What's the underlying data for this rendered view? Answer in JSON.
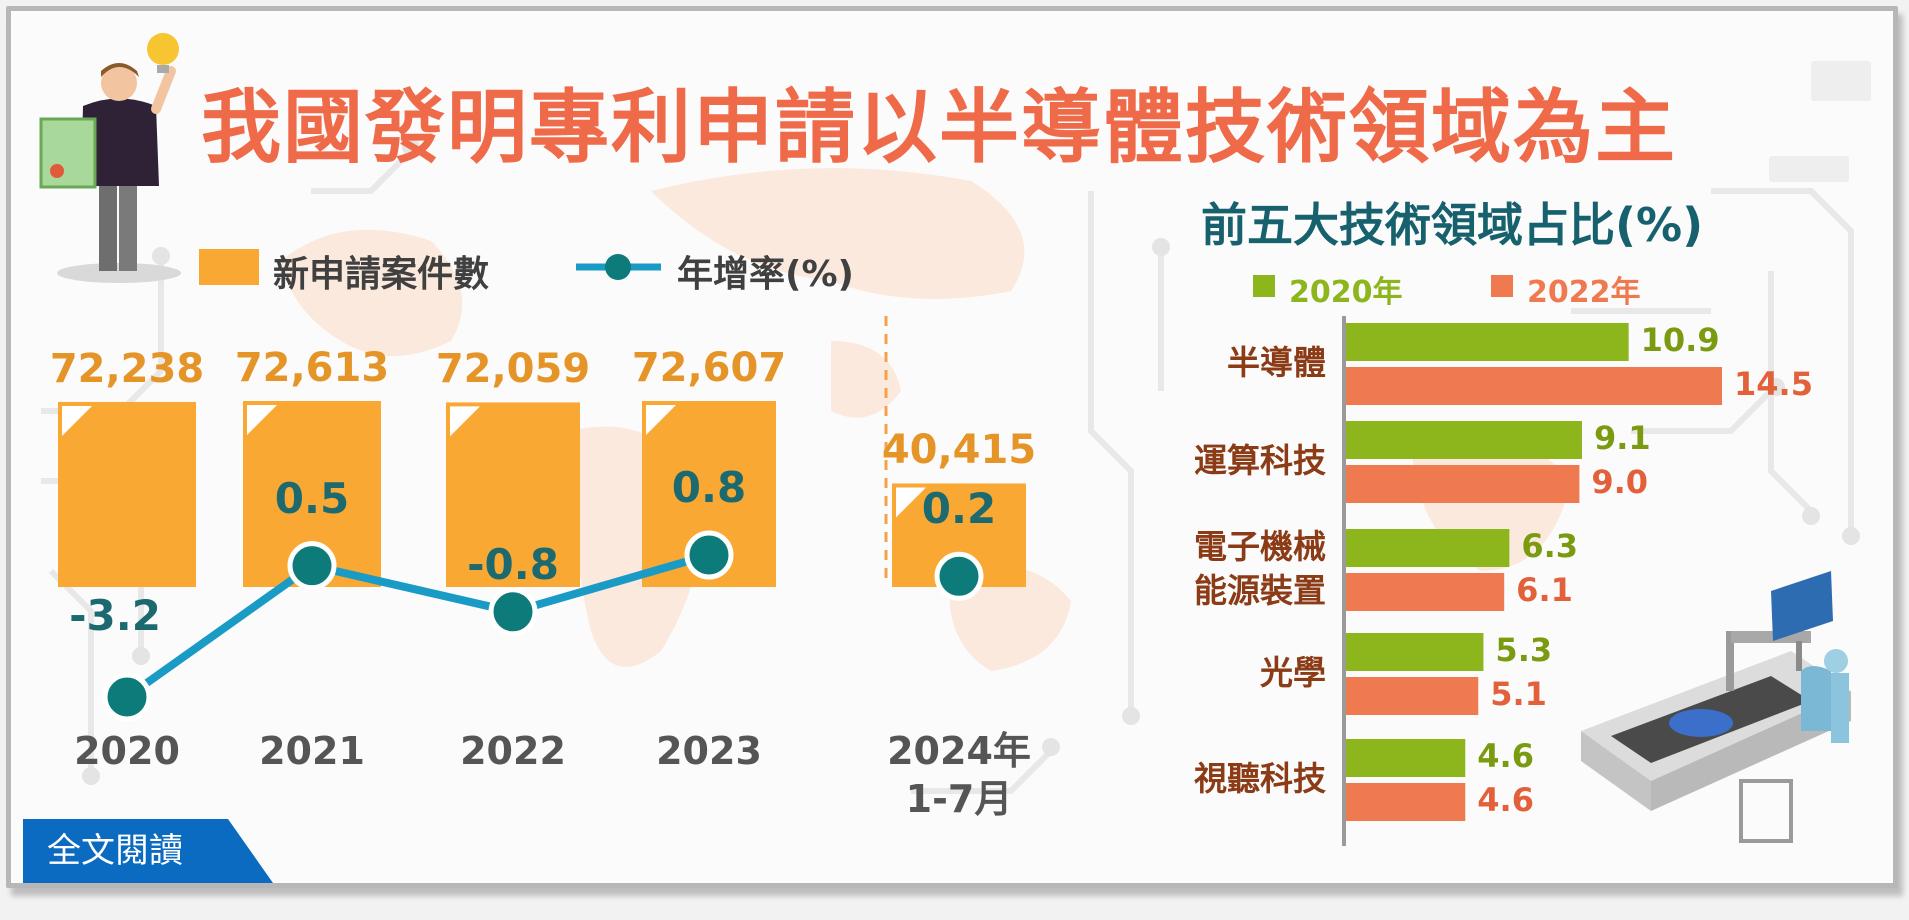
{
  "title": "我國發明專利申請以半導體技術領域為主",
  "read_button": "全文閱讀",
  "colors": {
    "bar": "#f9a833",
    "line": "#1a9bc6",
    "dot": "#0e7b7b",
    "green": "#8db51c",
    "orange": "#f07a50",
    "title": "#ef6a49"
  },
  "chart_data": [
    {
      "type": "bar",
      "legend": {
        "bar": "新申請案件數",
        "line": "年增率(%)"
      },
      "categories": [
        "2020",
        "2021",
        "2022",
        "2023",
        "2024年\n1-7月"
      ],
      "series": [
        {
          "name": "新申請案件數",
          "values": [
            72238,
            72613,
            72059,
            72607,
            40415
          ],
          "labels": [
            "72,238",
            "72,613",
            "72,059",
            "72,607",
            "40,415"
          ]
        },
        {
          "name": "年增率(%)",
          "values": [
            -3.2,
            0.5,
            -0.8,
            0.8,
            0.2
          ],
          "labels": [
            "-3.2",
            "0.5",
            "-0.8",
            "0.8",
            "0.2"
          ]
        }
      ],
      "legend_position": "top-left"
    },
    {
      "type": "bar",
      "orientation": "horizontal",
      "title": "前五大技術領域占比(%)",
      "categories": [
        "半導體",
        "運算科技",
        "電子機械\n能源裝置",
        "光學",
        "視聽科技"
      ],
      "series": [
        {
          "name": "2020年",
          "values": [
            10.9,
            9.1,
            6.3,
            5.3,
            4.6
          ],
          "labels": [
            "10.9",
            "9.1",
            "6.3",
            "5.3",
            "4.6"
          ]
        },
        {
          "name": "2022年",
          "values": [
            14.5,
            9.0,
            6.1,
            5.1,
            4.6
          ],
          "labels": [
            "14.5",
            "9.0",
            "6.1",
            "5.1",
            "4.6"
          ]
        }
      ],
      "legend_position": "top"
    }
  ]
}
